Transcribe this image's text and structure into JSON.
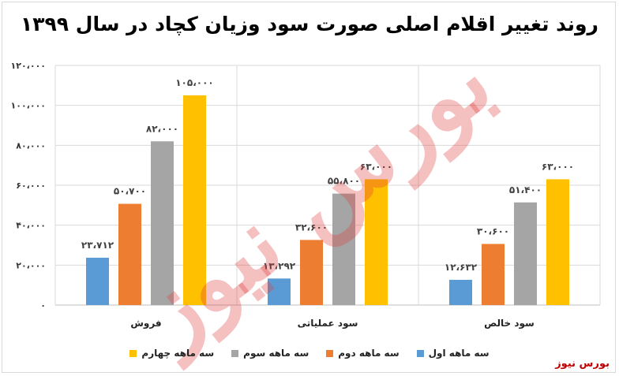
{
  "chart_data": {
    "type": "bar",
    "title": "روند تغییر اقلام اصلی صورت سود وزیان کچاد در سال ۱۳۹۹",
    "categories": [
      "فروش",
      "سود عملیاتی",
      "سود خالص"
    ],
    "series": [
      {
        "name": "سه ماهه اول",
        "color": "#5b9bd5",
        "values": [
          23712,
          13292,
          12632
        ],
        "labels": [
          "۲۳،۷۱۲",
          "۱۳،۲۹۲",
          "۱۲،۶۳۲"
        ]
      },
      {
        "name": "سه ماهه دوم",
        "color": "#ed7d31",
        "values": [
          50700,
          32600,
          30600
        ],
        "labels": [
          "۵۰،۷۰۰",
          "۳۲،۶۰۰",
          "۳۰،۶۰۰"
        ]
      },
      {
        "name": "سه ماهه سوم",
        "color": "#a5a5a5",
        "values": [
          82000,
          55800,
          51400
        ],
        "labels": [
          "۸۲،۰۰۰",
          "۵۵،۸۰۰",
          "۵۱،۴۰۰"
        ]
      },
      {
        "name": "سه ماهه چهارم",
        "color": "#ffc000",
        "values": [
          105000,
          63000,
          63000
        ],
        "labels": [
          "۱۰۵،۰۰۰",
          "۶۳،۰۰۰",
          "۶۳،۰۰۰"
        ]
      }
    ],
    "ylim": [
      0,
      120000
    ],
    "yticks": [
      0,
      20000,
      40000,
      60000,
      80000,
      100000,
      120000
    ],
    "ytick_labels": [
      "۰",
      "۲۰،۰۰۰",
      "۴۰،۰۰۰",
      "۶۰،۰۰۰",
      "۸۰،۰۰۰",
      "۱۰۰،۰۰۰",
      "۱۲۰،۰۰۰"
    ],
    "grid": true,
    "legend_position": "bottom"
  },
  "watermark": "بورس نیوز",
  "source_label": "بورس نیوز"
}
